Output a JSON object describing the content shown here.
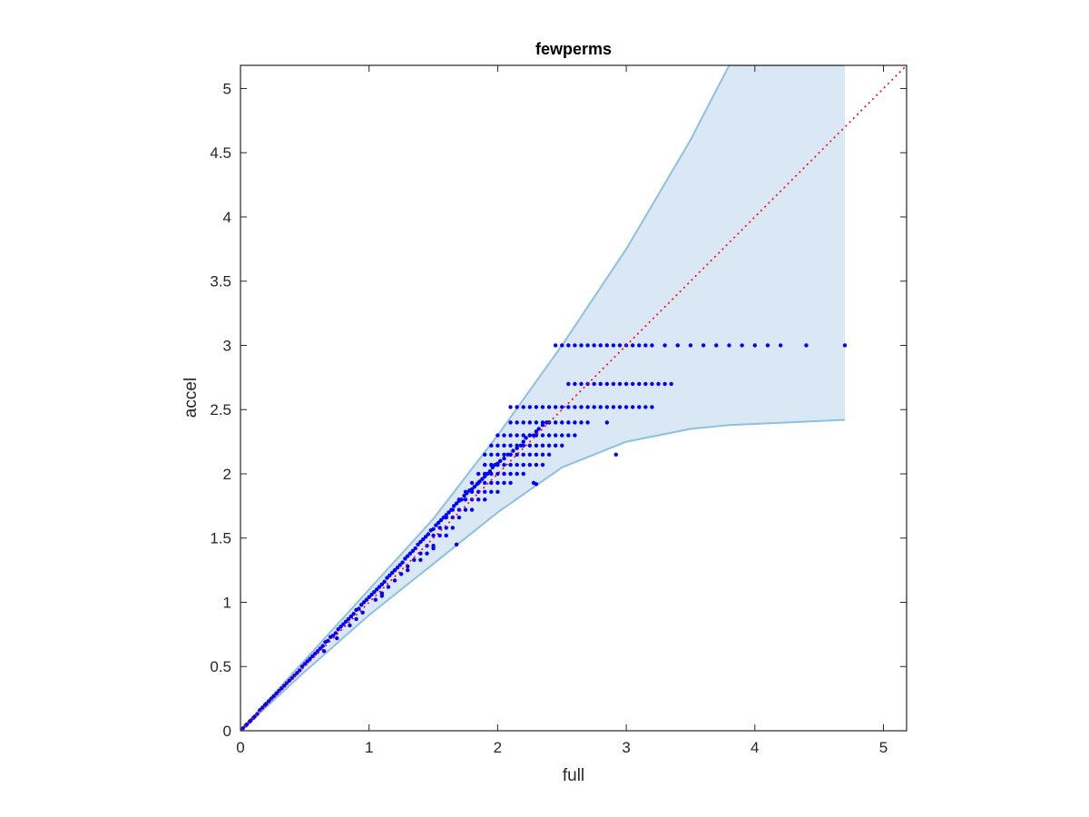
{
  "chart_data": {
    "type": "scatter",
    "title": "fewperms",
    "xlabel": "full",
    "ylabel": "accel",
    "xlim": [
      0,
      5.18
    ],
    "ylim": [
      0,
      5.18
    ],
    "xticks": [
      0,
      1,
      2,
      3,
      4,
      5
    ],
    "yticks": [
      0,
      0.5,
      1,
      1.5,
      2,
      2.5,
      3,
      3.5,
      4,
      4.5,
      5
    ],
    "xtick_labels": [
      "0",
      "1",
      "2",
      "3",
      "4",
      "5"
    ],
    "ytick_labels": [
      "0",
      "0.5",
      "1",
      "1.5",
      "2",
      "2.5",
      "3",
      "3.5",
      "4",
      "4.5",
      "5"
    ],
    "grid": false,
    "colors": {
      "points": "#0000ff",
      "band_fill": "#d9e8f4",
      "band_edge": "#8fc0e0",
      "reference_line": "#ff0000",
      "axes": "#262626"
    },
    "reference_line": {
      "style": "dotted",
      "x": [
        0,
        5.18
      ],
      "y": [
        0,
        5.18
      ]
    },
    "band": {
      "x": [
        0,
        0.5,
        1.0,
        1.5,
        2.0,
        2.5,
        3.0,
        3.5,
        3.8,
        4.7
      ],
      "upper": [
        0,
        0.55,
        1.1,
        1.65,
        2.3,
        3.0,
        3.75,
        4.6,
        5.18,
        5.18
      ],
      "lower": [
        0,
        0.46,
        0.9,
        1.3,
        1.7,
        2.05,
        2.25,
        2.35,
        2.38,
        2.42
      ]
    },
    "series": [
      {
        "x": [
          0.02,
          0.04,
          0.05,
          0.07,
          0.08,
          0.1,
          0.11,
          0.13,
          0.15,
          0.17,
          0.19,
          0.2,
          0.22,
          0.24,
          0.26,
          0.28,
          0.3,
          0.32,
          0.34,
          0.36,
          0.38,
          0.4,
          0.42,
          0.44,
          0.46,
          0.48,
          0.5,
          0.52,
          0.54,
          0.56,
          0.58,
          0.6,
          0.62,
          0.64,
          0.66,
          0.68,
          0.7,
          0.72,
          0.74,
          0.76,
          0.78,
          0.8,
          0.82,
          0.84,
          0.86,
          0.88,
          0.9,
          0.92,
          0.94,
          0.96,
          0.98,
          1.0,
          1.02,
          1.04,
          1.06,
          1.08,
          1.1,
          1.12,
          1.14,
          1.16,
          1.18,
          1.2,
          1.22,
          1.24,
          1.26,
          1.28,
          1.3,
          1.32,
          1.34,
          1.36,
          1.38,
          1.4,
          1.42,
          1.44,
          1.46,
          1.48,
          1.5,
          1.52,
          1.54,
          1.56,
          1.58,
          1.6,
          1.62,
          1.64,
          1.66,
          1.68,
          1.7,
          1.72,
          1.74,
          1.76,
          1.78,
          1.8,
          1.82,
          1.84,
          1.86,
          1.88,
          1.9,
          1.92,
          1.94,
          1.96,
          1.98,
          2.0,
          2.02,
          2.05,
          2.08,
          2.1,
          2.12,
          2.15,
          2.18,
          2.2,
          2.22,
          2.25,
          2.28,
          2.3,
          2.32,
          2.35,
          2.38,
          2.4,
          2.45,
          2.5,
          2.55,
          2.6,
          2.65,
          2.7,
          2.75,
          2.8,
          2.85,
          2.9,
          2.95,
          3.0,
          3.05,
          3.1,
          3.15,
          3.2,
          3.3,
          3.4,
          3.5,
          3.6,
          3.7,
          3.8,
          3.9,
          4.0,
          4.1,
          4.2,
          4.4,
          4.7,
          2.55,
          2.6,
          2.65,
          2.7,
          2.75,
          2.8,
          2.85,
          2.9,
          2.95,
          3.0,
          3.05,
          3.1,
          3.15,
          3.2,
          3.25,
          3.3,
          3.35,
          2.1,
          2.15,
          2.2,
          2.25,
          2.3,
          2.35,
          2.4,
          2.45,
          2.5,
          2.55,
          2.6,
          2.65,
          2.7,
          2.75,
          2.8,
          2.85,
          2.9,
          2.95,
          3.0,
          3.05,
          3.1,
          3.15,
          3.2,
          2.1,
          2.15,
          2.2,
          2.25,
          2.3,
          2.35,
          2.4,
          2.45,
          2.5,
          2.55,
          2.6,
          2.65,
          2.7,
          2.85,
          2.0,
          2.05,
          2.1,
          2.15,
          2.2,
          2.25,
          2.3,
          2.35,
          2.4,
          2.45,
          2.5,
          2.55,
          2.6,
          1.95,
          2.0,
          2.05,
          2.1,
          2.15,
          2.2,
          2.25,
          2.3,
          2.35,
          2.4,
          2.45,
          2.5,
          1.9,
          1.95,
          2.0,
          2.05,
          2.1,
          2.15,
          2.2,
          2.25,
          2.3,
          2.35,
          2.4,
          1.9,
          1.95,
          2.0,
          2.05,
          2.1,
          2.15,
          2.2,
          2.25,
          2.3,
          2.35,
          1.85,
          1.9,
          1.95,
          2.0,
          2.05,
          2.1,
          2.15,
          2.2,
          2.28,
          1.8,
          1.85,
          1.9,
          1.95,
          2.0,
          2.05,
          2.1,
          1.75,
          1.8,
          1.85,
          1.9,
          1.95,
          2.0,
          1.7,
          1.75,
          1.8,
          1.85,
          1.9,
          1.65,
          1.7,
          1.75,
          1.8,
          1.6,
          1.65,
          1.7,
          1.55,
          1.6,
          1.65,
          1.5,
          1.55,
          1.6,
          1.45,
          1.5,
          1.4,
          1.45,
          1.35,
          1.4,
          1.3,
          1.25,
          1.2,
          1.15,
          1.1,
          1.05,
          0.95,
          0.85,
          0.75,
          0.65,
          1.68,
          2.92,
          2.3,
          1.5,
          1.3,
          1.1,
          0.9
        ],
        "y": [
          0.02,
          0.04,
          0.05,
          0.07,
          0.08,
          0.1,
          0.11,
          0.13,
          0.16,
          0.18,
          0.2,
          0.21,
          0.23,
          0.25,
          0.27,
          0.29,
          0.31,
          0.33,
          0.35,
          0.37,
          0.39,
          0.41,
          0.43,
          0.45,
          0.47,
          0.5,
          0.52,
          0.54,
          0.56,
          0.58,
          0.6,
          0.62,
          0.64,
          0.66,
          0.69,
          0.7,
          0.73,
          0.74,
          0.76,
          0.79,
          0.81,
          0.83,
          0.85,
          0.87,
          0.89,
          0.91,
          0.94,
          0.95,
          0.98,
          1.0,
          1.02,
          1.04,
          1.06,
          1.08,
          1.1,
          1.12,
          1.14,
          1.16,
          1.19,
          1.21,
          1.23,
          1.25,
          1.27,
          1.29,
          1.31,
          1.34,
          1.36,
          1.38,
          1.4,
          1.42,
          1.45,
          1.47,
          1.49,
          1.51,
          1.53,
          1.56,
          1.57,
          1.6,
          1.62,
          1.64,
          1.66,
          1.68,
          1.7,
          1.72,
          1.75,
          1.77,
          1.79,
          1.8,
          1.83,
          1.85,
          1.87,
          1.88,
          1.9,
          1.92,
          1.94,
          1.96,
          1.98,
          2.0,
          2.02,
          2.05,
          2.07,
          2.08,
          2.1,
          2.12,
          2.15,
          2.15,
          2.18,
          2.2,
          2.22,
          2.25,
          2.28,
          2.3,
          2.3,
          2.33,
          2.35,
          2.38,
          2.4,
          2.4,
          3.0,
          3.0,
          3.0,
          3.0,
          3.0,
          3.0,
          3.0,
          3.0,
          3.0,
          3.0,
          3.0,
          3.0,
          3.0,
          3.0,
          3.0,
          3.0,
          3.0,
          3.0,
          3.0,
          3.0,
          3.0,
          3.0,
          3.0,
          3.0,
          3.0,
          3.0,
          3.0,
          3.0,
          2.7,
          2.7,
          2.7,
          2.7,
          2.7,
          2.7,
          2.7,
          2.7,
          2.7,
          2.7,
          2.7,
          2.7,
          2.7,
          2.7,
          2.7,
          2.7,
          2.7,
          2.52,
          2.52,
          2.52,
          2.52,
          2.52,
          2.52,
          2.52,
          2.52,
          2.52,
          2.52,
          2.52,
          2.52,
          2.52,
          2.52,
          2.52,
          2.52,
          2.52,
          2.52,
          2.52,
          2.52,
          2.52,
          2.52,
          2.52,
          2.4,
          2.4,
          2.4,
          2.4,
          2.4,
          2.4,
          2.4,
          2.4,
          2.4,
          2.4,
          2.4,
          2.4,
          2.4,
          2.4,
          2.3,
          2.3,
          2.3,
          2.3,
          2.3,
          2.3,
          2.3,
          2.3,
          2.3,
          2.3,
          2.3,
          2.3,
          2.3,
          2.22,
          2.22,
          2.22,
          2.22,
          2.22,
          2.22,
          2.22,
          2.22,
          2.22,
          2.22,
          2.22,
          2.22,
          2.15,
          2.15,
          2.15,
          2.15,
          2.15,
          2.15,
          2.15,
          2.15,
          2.15,
          2.15,
          2.15,
          2.07,
          2.07,
          2.07,
          2.07,
          2.07,
          2.07,
          2.07,
          2.07,
          2.07,
          2.07,
          2.0,
          2.0,
          2.0,
          2.0,
          2.0,
          2.0,
          2.0,
          2.0,
          1.93,
          1.93,
          1.93,
          1.93,
          1.93,
          1.93,
          1.93,
          1.93,
          1.86,
          1.86,
          1.86,
          1.86,
          1.86,
          1.86,
          1.8,
          1.8,
          1.8,
          1.8,
          1.8,
          1.72,
          1.72,
          1.72,
          1.72,
          1.66,
          1.66,
          1.66,
          1.58,
          1.58,
          1.58,
          1.52,
          1.52,
          1.52,
          1.44,
          1.44,
          1.38,
          1.38,
          1.33,
          1.33,
          1.28,
          1.22,
          1.17,
          1.12,
          1.07,
          1.02,
          0.92,
          0.82,
          0.72,
          0.62,
          1.45,
          2.15,
          1.92,
          1.42,
          1.25,
          1.05,
          0.87
        ]
      }
    ]
  }
}
